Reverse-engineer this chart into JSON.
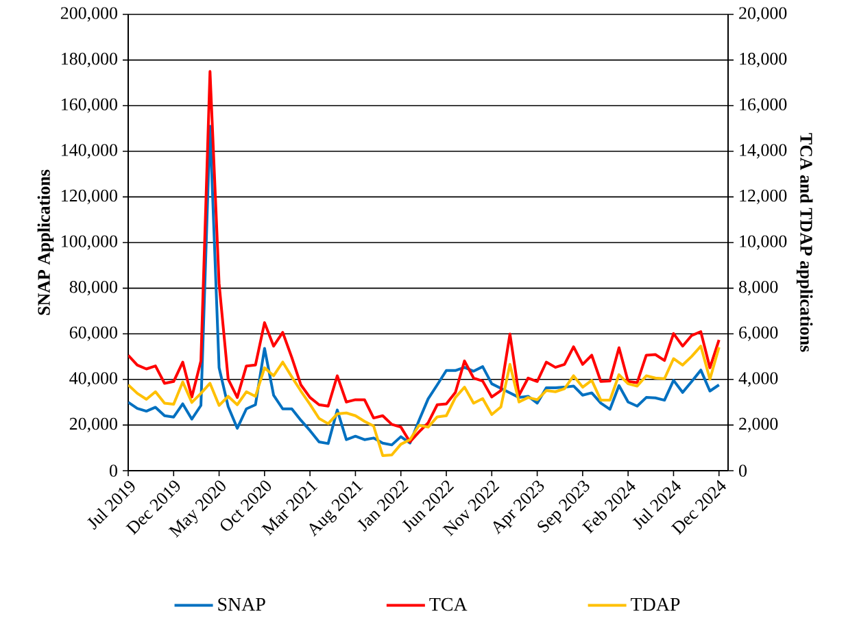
{
  "chart_data": {
    "type": "line",
    "ylabel": "SNAP Applications",
    "y2label": "TCA and TDAP applications",
    "x": [
      "2019-07",
      "2019-08",
      "2019-09",
      "2019-10",
      "2019-11",
      "2019-12",
      "2020-01",
      "2020-02",
      "2020-03",
      "2020-04",
      "2020-05",
      "2020-06",
      "2020-07",
      "2020-08",
      "2020-09",
      "2020-10",
      "2020-11",
      "2020-12",
      "2021-01",
      "2021-02",
      "2021-03",
      "2021-04",
      "2021-05",
      "2021-06",
      "2021-07",
      "2021-08",
      "2021-09",
      "2021-10",
      "2021-11",
      "2021-12",
      "2022-01",
      "2022-02",
      "2022-03",
      "2022-04",
      "2022-05",
      "2022-06",
      "2022-07",
      "2022-08",
      "2022-09",
      "2022-10",
      "2022-11",
      "2022-12",
      "2023-01",
      "2023-02",
      "2023-03",
      "2023-04",
      "2023-05",
      "2023-06",
      "2023-07",
      "2023-08",
      "2023-09",
      "2023-10",
      "2023-11",
      "2023-12",
      "2024-01",
      "2024-02",
      "2024-03",
      "2024-04",
      "2024-05",
      "2024-06",
      "2024-07",
      "2024-08",
      "2024-09",
      "2024-10",
      "2024-11",
      "2024-12"
    ],
    "series": [
      {
        "name": "SNAP",
        "color": "#0070c0",
        "values": [
          30000,
          27300,
          26100,
          27800,
          24100,
          23500,
          29300,
          22600,
          28600,
          151000,
          45100,
          28100,
          18600,
          27100,
          28900,
          53600,
          33100,
          27100,
          27100,
          22100,
          17600,
          12600,
          11900,
          26600,
          13600,
          15100,
          13600,
          14300,
          12100,
          11300,
          14900,
          12100,
          22100,
          31500,
          37600,
          43900,
          43900,
          45300,
          43600,
          45600,
          38100,
          36100,
          null,
          32100,
          32600,
          29600,
          36300,
          36300,
          36600,
          37100,
          33100,
          34100,
          29600,
          26900,
          37300,
          30100,
          28300,
          32100,
          31900,
          30900,
          39600,
          34300,
          39100,
          44100,
          34900,
          37600
        ]
      },
      {
        "name": "TCA",
        "color": "#ff0000",
        "axis": "y2",
        "values": [
          5060,
          4630,
          4460,
          4590,
          3830,
          3910,
          4760,
          3230,
          4810,
          17500,
          8200,
          4010,
          3210,
          4590,
          4630,
          6490,
          5460,
          6060,
          4960,
          3760,
          3210,
          2890,
          2830,
          4160,
          3010,
          3110,
          3110,
          2310,
          2410,
          2030,
          1910,
          1260,
          1700,
          2100,
          2890,
          2930,
          3430,
          4810,
          4060,
          3930,
          3230,
          3510,
          5990,
          3310,
          4060,
          3910,
          4760,
          4530,
          4660,
          5430,
          4660,
          5060,
          3910,
          3930,
          5390,
          3910,
          3860,
          5060,
          5090,
          4830,
          6010,
          5460,
          5930,
          6090,
          4510,
          5730
        ]
      },
      {
        "name": "TDAP",
        "color": "#ffc000",
        "axis": "y2",
        "values": [
          3760,
          3390,
          3130,
          3460,
          2960,
          2910,
          3890,
          2990,
          3390,
          3830,
          2860,
          3260,
          2890,
          3460,
          3260,
          4510,
          4160,
          4760,
          4110,
          3490,
          2910,
          2290,
          2060,
          2490,
          2530,
          2410,
          2160,
          1960,
          660,
          690,
          1160,
          1360,
          1990,
          1910,
          2360,
          2410,
          3210,
          3660,
          2960,
          3160,
          2460,
          2790,
          4660,
          3010,
          3210,
          3110,
          3510,
          3460,
          3590,
          4160,
          3660,
          3960,
          3090,
          3090,
          4210,
          3810,
          3710,
          4160,
          4060,
          4030,
          4910,
          4630,
          5010,
          5460,
          4010,
          5410
        ]
      }
    ],
    "xlim": [
      "2019-07",
      "2025-01"
    ],
    "xticks": [
      {
        "value": "2019-07",
        "label": "Jul 2019"
      },
      {
        "value": "2019-12",
        "label": "Dec 2019"
      },
      {
        "value": "2020-05",
        "label": "May 2020"
      },
      {
        "value": "2020-10",
        "label": "Oct 2020"
      },
      {
        "value": "2021-03",
        "label": "Mar 2021"
      },
      {
        "value": "2021-08",
        "label": "Aug 2021"
      },
      {
        "value": "2022-01",
        "label": "Jan 2022"
      },
      {
        "value": "2022-06",
        "label": "Jun 2022"
      },
      {
        "value": "2022-11",
        "label": "Nov 2022"
      },
      {
        "value": "2023-04",
        "label": "Apr 2023"
      },
      {
        "value": "2023-09",
        "label": "Sep 2023"
      },
      {
        "value": "2024-02",
        "label": "Feb 2024"
      },
      {
        "value": "2024-07",
        "label": "Jul 2024"
      },
      {
        "value": "2024-12",
        "label": "Dec 2024"
      }
    ],
    "ylim": [
      0,
      200000
    ],
    "yticks": [
      0,
      {
        "value": 20000,
        "label": "20,000"
      },
      {
        "value": 40000,
        "label": "40,000"
      },
      {
        "value": 60000,
        "label": "60,000"
      },
      {
        "value": 80000,
        "label": "80,000"
      },
      {
        "value": 100000,
        "label": "100,000"
      },
      {
        "value": 120000,
        "label": "120,000"
      },
      {
        "value": 140000,
        "label": "140,000"
      },
      {
        "value": 160000,
        "label": "160,000"
      },
      {
        "value": 180000,
        "label": "180,000"
      },
      {
        "value": 200000,
        "label": "200,000"
      }
    ],
    "y2lim": [
      0,
      20000
    ],
    "y2ticks": [
      0,
      {
        "value": 2000,
        "label": "2,000"
      },
      {
        "value": 4000,
        "label": "4,000"
      },
      {
        "value": 6000,
        "label": "6,000"
      },
      {
        "value": 8000,
        "label": "8,000"
      },
      {
        "value": 10000,
        "label": "10,000"
      },
      {
        "value": 12000,
        "label": "12,000"
      },
      {
        "value": 14000,
        "label": "14,000"
      },
      {
        "value": 16000,
        "label": "16,000"
      },
      {
        "value": 18000,
        "label": "18,000"
      },
      {
        "value": 20000,
        "label": "20,000"
      }
    ],
    "grid": "y",
    "legend": "bottom",
    "marker": "none",
    "line_style": "solid"
  }
}
